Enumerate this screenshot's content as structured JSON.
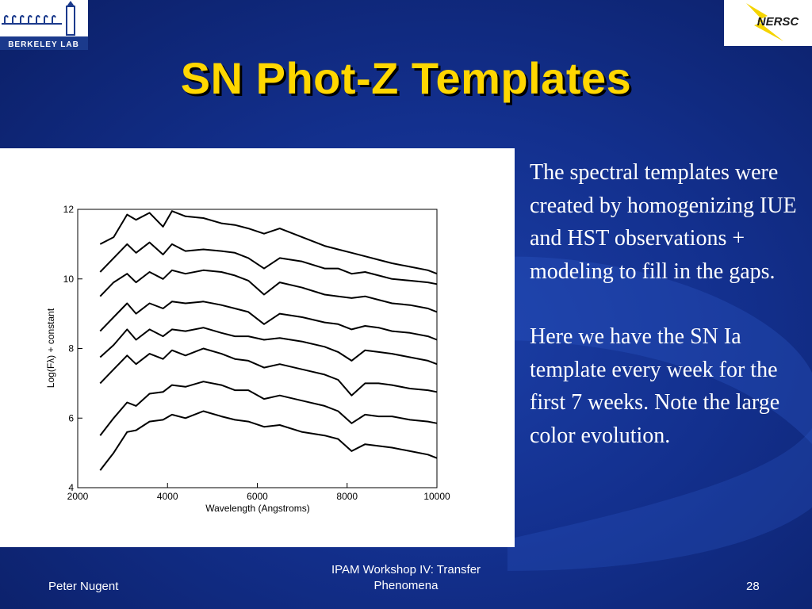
{
  "slide": {
    "title": "SN Phot-Z Templates",
    "body_paragraphs": [
      "The spectral templates were created by homogenizing IUE and HST observations + modeling to fill in the gaps.",
      "Here we have the SN Ia template every week for the first 7 weeks. Note the large color evolution."
    ],
    "footer": {
      "left": "Peter Nugent",
      "center": "IPAM Workshop IV: Transfer Phenomena",
      "right": "28"
    },
    "logos": {
      "left_text": "BERKELEY LAB",
      "right_text": "NERSC"
    },
    "colors": {
      "title": "#ffd700",
      "background": "#13308e",
      "text": "#ffffff"
    }
  },
  "chart_data": {
    "type": "line",
    "xlabel": "Wavelength (Angstroms)",
    "ylabel": "Log(Fλ) + constant",
    "xlim": [
      2000,
      10000
    ],
    "ylim": [
      4,
      12
    ],
    "xticks": [
      "2000",
      "4000",
      "6000",
      "8000",
      "10000"
    ],
    "yticks": [
      "4",
      "6",
      "8",
      "10",
      "12"
    ],
    "x": [
      2500,
      2800,
      3100,
      3300,
      3600,
      3900,
      4100,
      4400,
      4800,
      5200,
      5500,
      5800,
      6150,
      6500,
      7000,
      7500,
      7800,
      8100,
      8400,
      8700,
      9000,
      9400,
      9800,
      10000
    ],
    "series": [
      {
        "values": [
          11.0,
          11.2,
          11.85,
          11.7,
          11.9,
          11.5,
          11.95,
          11.8,
          11.75,
          11.6,
          11.55,
          11.45,
          11.3,
          11.45,
          11.2,
          10.95,
          10.85,
          10.75,
          10.65,
          10.55,
          10.45,
          10.35,
          10.25,
          10.15
        ]
      },
      {
        "values": [
          10.2,
          10.6,
          11.0,
          10.75,
          11.05,
          10.7,
          11.0,
          10.8,
          10.85,
          10.8,
          10.75,
          10.6,
          10.3,
          10.6,
          10.5,
          10.3,
          10.3,
          10.15,
          10.2,
          10.1,
          10.0,
          9.95,
          9.9,
          9.85
        ]
      },
      {
        "values": [
          9.5,
          9.9,
          10.15,
          9.9,
          10.2,
          10.0,
          10.25,
          10.15,
          10.25,
          10.2,
          10.1,
          9.95,
          9.55,
          9.9,
          9.75,
          9.55,
          9.5,
          9.45,
          9.5,
          9.4,
          9.3,
          9.25,
          9.15,
          9.05
        ]
      },
      {
        "values": [
          8.5,
          8.9,
          9.3,
          9.0,
          9.3,
          9.15,
          9.35,
          9.3,
          9.35,
          9.25,
          9.15,
          9.05,
          8.7,
          9.0,
          8.9,
          8.75,
          8.7,
          8.55,
          8.65,
          8.6,
          8.5,
          8.45,
          8.35,
          8.25
        ]
      },
      {
        "values": [
          7.75,
          8.1,
          8.55,
          8.25,
          8.55,
          8.35,
          8.55,
          8.5,
          8.6,
          8.45,
          8.35,
          8.35,
          8.25,
          8.3,
          8.2,
          8.05,
          7.9,
          7.65,
          7.95,
          7.9,
          7.85,
          7.75,
          7.65,
          7.55
        ]
      },
      {
        "values": [
          7.0,
          7.4,
          7.8,
          7.55,
          7.85,
          7.7,
          7.95,
          7.8,
          8.0,
          7.85,
          7.7,
          7.65,
          7.45,
          7.55,
          7.4,
          7.25,
          7.1,
          6.65,
          7.0,
          7.0,
          6.95,
          6.85,
          6.8,
          6.75
        ]
      },
      {
        "values": [
          5.5,
          6.0,
          6.45,
          6.35,
          6.7,
          6.75,
          6.95,
          6.9,
          7.05,
          6.95,
          6.8,
          6.8,
          6.55,
          6.65,
          6.5,
          6.35,
          6.2,
          5.85,
          6.1,
          6.05,
          6.05,
          5.95,
          5.9,
          5.85
        ]
      },
      {
        "values": [
          4.5,
          5.0,
          5.6,
          5.65,
          5.9,
          5.95,
          6.1,
          6.0,
          6.2,
          6.05,
          5.95,
          5.9,
          5.75,
          5.8,
          5.6,
          5.5,
          5.4,
          5.05,
          5.25,
          5.2,
          5.15,
          5.05,
          4.95,
          4.85
        ]
      }
    ],
    "grid": false
  }
}
